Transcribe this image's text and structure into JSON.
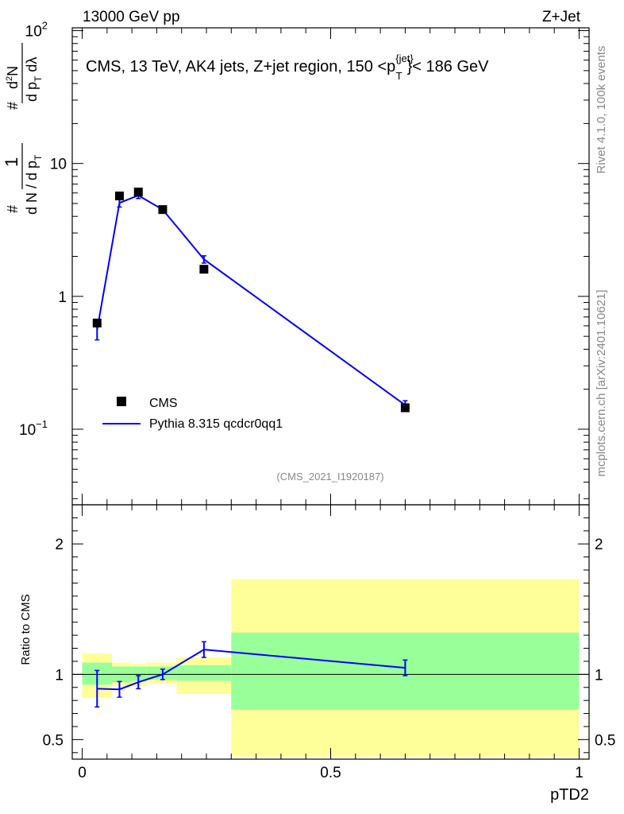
{
  "header": {
    "left": "13000 GeV pp",
    "right": "Z+Jet"
  },
  "side": {
    "rivet": "Rivet 4.1.0,  100k events",
    "site": "mcplots.cern.ch [arXiv:2401.10621]"
  },
  "main": {
    "title": "CMS, 13 TeV, AK4 jets, Z+jet region, 150 <p",
    "title_sup": "{jet}",
    "title_sub": "T",
    "title_end": "}< 186 GeV",
    "analysis_id": "(CMS_2021_I1920187)",
    "ylabel": "# 1/(d N / d pT) # d²N/(d pT dλ)"
  },
  "ratio": {
    "ylabel": "Ratio to CMS"
  },
  "colors": {
    "data": "#000000",
    "mc": "#0000ff",
    "band_inner": "#99ff99",
    "band_outer": "#ffff99"
  },
  "chart_data": [
    {
      "type": "scatter",
      "panel": "main",
      "title": "CMS, 13 TeV, AK4 jets, Z+jet region, 150 < pT(jet) < 186 GeV",
      "xlabel": "pTD2",
      "ylabel": "1/(dN/dpT) d2N/(dpT dλ)",
      "yscale": "log",
      "xlim": [
        -0.02,
        1.02
      ],
      "ylim": [
        0.027,
        105
      ],
      "y_ticks": [
        {
          "value": 0.1,
          "label": "10",
          "sup": "−1"
        },
        {
          "value": 1,
          "label": "1",
          "sup": ""
        },
        {
          "value": 10,
          "label": "10",
          "sup": ""
        },
        {
          "value": 100,
          "label": "10",
          "sup": "2"
        }
      ],
      "legend": {
        "position": "lower-left",
        "entries": [
          "CMS",
          "Pythia 8.315 qcdcr0qq1"
        ]
      },
      "series": [
        {
          "name": "CMS",
          "kind": "points",
          "x": [
            0.03,
            0.075,
            0.113,
            0.162,
            0.245,
            0.65
          ],
          "y": [
            0.63,
            5.7,
            6.1,
            4.5,
            1.6,
            0.145
          ]
        },
        {
          "name": "Pythia 8.315 qcdcr0qq1",
          "kind": "line",
          "x": [
            0.03,
            0.075,
            0.113,
            0.162,
            0.245,
            0.65
          ],
          "y": [
            0.56,
            5.05,
            5.75,
            4.5,
            1.9,
            0.152
          ],
          "yerr_lo": [
            0.09,
            0.35,
            0.3,
            0.15,
            0.12,
            0.012
          ],
          "yerr_hi": [
            0.09,
            0.35,
            0.3,
            0.15,
            0.12,
            0.012
          ]
        }
      ]
    },
    {
      "type": "line",
      "panel": "ratio",
      "xlabel": "pTD2",
      "ylabel": "Ratio to CMS",
      "xlim": [
        -0.02,
        1.02
      ],
      "ylim": [
        0.35,
        2.3
      ],
      "x_ticks": [
        {
          "value": 0,
          "label": "0"
        },
        {
          "value": 0.5,
          "label": "0.5"
        },
        {
          "value": 1,
          "label": "1"
        }
      ],
      "y_ticks": [
        {
          "value": 0.5,
          "label": "0.5"
        },
        {
          "value": 1,
          "label": "1"
        },
        {
          "value": 2,
          "label": "2"
        }
      ],
      "bands": [
        {
          "x0": 0.0,
          "x1": 0.06,
          "inner": [
            0.92,
            1.09
          ],
          "outer": [
            0.82,
            1.16
          ]
        },
        {
          "x0": 0.06,
          "x1": 0.1,
          "inner": [
            0.94,
            1.06
          ],
          "outer": [
            0.91,
            1.09
          ]
        },
        {
          "x0": 0.1,
          "x1": 0.13,
          "inner": [
            0.95,
            1.06
          ],
          "outer": [
            0.91,
            1.08
          ]
        },
        {
          "x0": 0.13,
          "x1": 0.19,
          "inner": [
            0.96,
            1.06
          ],
          "outer": [
            0.93,
            1.09
          ]
        },
        {
          "x0": 0.19,
          "x1": 0.3,
          "inner": [
            0.95,
            1.07
          ],
          "outer": [
            0.85,
            1.13
          ]
        },
        {
          "x0": 0.3,
          "x1": 1.0,
          "inner": [
            0.73,
            1.32
          ],
          "outer": [
            0.37,
            1.73
          ]
        }
      ],
      "series": [
        {
          "name": "Pythia 8.315 qcdcr0qq1 / CMS",
          "x": [
            0.03,
            0.075,
            0.113,
            0.162,
            0.245,
            0.65
          ],
          "y": [
            0.89,
            0.885,
            0.94,
            1.0,
            1.19,
            1.05
          ],
          "yerr_lo": [
            0.14,
            0.06,
            0.05,
            0.04,
            0.06,
            0.06
          ],
          "yerr_hi": [
            0.14,
            0.06,
            0.05,
            0.04,
            0.06,
            0.06
          ]
        }
      ]
    }
  ]
}
